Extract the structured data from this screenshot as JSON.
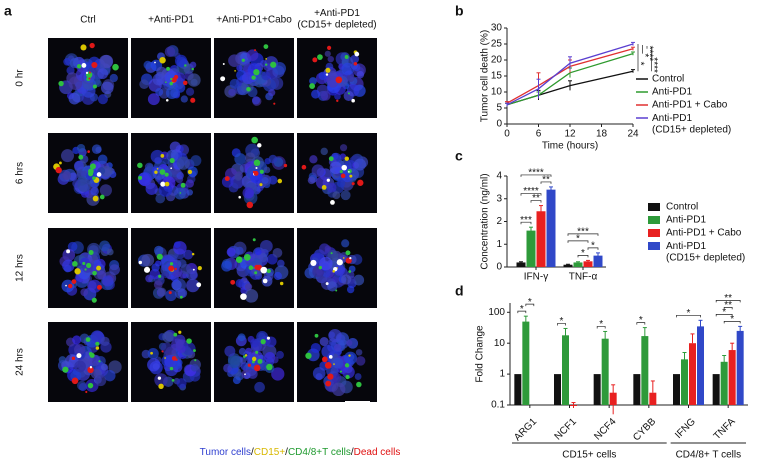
{
  "panel_a": {
    "label": "a",
    "columns": [
      "Ctrl",
      "+Anti-PD1",
      "+Anti-PD1+Cabo",
      "+Anti-PD1\n(CD15+ depleted)"
    ],
    "rows": [
      "0 hr",
      "6 hrs",
      "12 hrs",
      "24 hrs"
    ],
    "legend": [
      {
        "text": "Tumor cells",
        "color": "#2f3fd0"
      },
      {
        "text": "CD15+",
        "color": "#d8b800"
      },
      {
        "text": "CD4/8+T cells",
        "color": "#1e9a2e"
      },
      {
        "text": "Dead cells",
        "color": "#e01010"
      }
    ],
    "separator": "/"
  },
  "chart_data": [
    {
      "label": "b",
      "type": "line",
      "xlabel": "Time (hours)",
      "ylabel": "Tumor cell death (%)",
      "x": [
        0,
        6,
        12,
        24
      ],
      "xlim": [
        0,
        24
      ],
      "xticks": [
        0,
        6,
        12,
        18,
        24
      ],
      "ylim": [
        0,
        30
      ],
      "yticks": [
        0,
        5,
        10,
        15,
        20,
        25,
        30
      ],
      "series": [
        {
          "name": "Control",
          "color": "#111111",
          "values": [
            6,
            9,
            12,
            16.5
          ],
          "errors": [
            0.5,
            1.5,
            1.5,
            0.5
          ]
        },
        {
          "name": "Anti-PD1",
          "color": "#2e9a2e",
          "values": [
            6,
            9,
            16,
            22
          ],
          "errors": [
            0.5,
            1,
            1.5,
            0.5
          ]
        },
        {
          "name": "Anti-PD1 + Cabo",
          "color": "#e03030",
          "values": [
            6.5,
            12,
            18,
            23.5
          ],
          "errors": [
            0.5,
            4,
            2,
            0.5
          ]
        },
        {
          "name": "Anti-PD1\n(CD15+ depleted)",
          "color": "#5a3fd0",
          "values": [
            6,
            11,
            19,
            25
          ],
          "errors": [
            0.5,
            3,
            2,
            0.5
          ]
        }
      ],
      "significance": [
        "*",
        "*",
        "****",
        "****"
      ]
    },
    {
      "label": "c",
      "type": "bar",
      "ylabel": "Concentration (ng/ml)",
      "categories": [
        "IFN-γ",
        "TNF-α"
      ],
      "ylim": [
        0,
        4
      ],
      "yticks": [
        0,
        1,
        2,
        3,
        4
      ],
      "series": [
        {
          "name": "Control",
          "color": "#111111",
          "values": [
            0.2,
            0.1
          ],
          "errors": [
            0.03,
            0.02
          ]
        },
        {
          "name": "Anti-PD1",
          "color": "#2e9a3a",
          "values": [
            1.6,
            0.2
          ],
          "errors": [
            0.15,
            0.03
          ]
        },
        {
          "name": "Anti-PD1 + Cabo",
          "color": "#e82020",
          "values": [
            2.45,
            0.25
          ],
          "errors": [
            0.25,
            0.04
          ]
        },
        {
          "name": "Anti-PD1\n(CD15+ depleted)",
          "color": "#3048c8",
          "values": [
            3.4,
            0.5
          ],
          "errors": [
            0.12,
            0.12
          ]
        }
      ],
      "significance": [
        {
          "label": "***",
          "group": 0,
          "from": 0,
          "to": 1
        },
        {
          "label": "**",
          "group": 0,
          "from": 1,
          "to": 2
        },
        {
          "label": "****",
          "group": 0,
          "from": 0,
          "to": 2
        },
        {
          "label": "**",
          "group": 0,
          "from": 2,
          "to": 3
        },
        {
          "label": "****",
          "group": 0,
          "from": 0,
          "to": 3
        },
        {
          "label": "*",
          "group": 1,
          "from": 1,
          "to": 2
        },
        {
          "label": "*",
          "group": 1,
          "from": 2,
          "to": 3
        },
        {
          "label": "*",
          "group": 1,
          "from": 0,
          "to": 2
        },
        {
          "label": "***",
          "group": 1,
          "from": 0,
          "to": 3
        }
      ]
    },
    {
      "label": "d",
      "type": "bar",
      "log": true,
      "ylabel": "Fold Change",
      "categories": [
        "ARG1",
        "NCF1",
        "NCF4",
        "CYBB",
        "IFNG",
        "TNFA"
      ],
      "ylim": [
        0.1,
        200
      ],
      "yticks": [
        0.1,
        1,
        10,
        100
      ],
      "series": [
        {
          "color": "#111111",
          "values": [
            1,
            1,
            1,
            1,
            1,
            1
          ],
          "errors": [
            null,
            null,
            null,
            null,
            null,
            null
          ]
        },
        {
          "color": "#2e9a3a",
          "values": [
            50,
            18,
            14,
            17,
            3,
            2.5
          ],
          "errors": [
            25,
            12,
            10,
            15,
            2,
            1.5
          ]
        },
        {
          "color": "#e82020",
          "values": [
            null,
            0.1,
            0.25,
            0.25,
            10,
            6
          ],
          "errors": [
            null,
            0.02,
            0.2,
            0.35,
            10,
            4
          ]
        },
        {
          "color": "#3048c8",
          "values": [
            null,
            null,
            null,
            null,
            35,
            25
          ],
          "errors": [
            null,
            null,
            null,
            null,
            20,
            10
          ]
        }
      ],
      "significance": [
        {
          "label": "*",
          "group": 0,
          "from": 0,
          "to": 1
        },
        {
          "label": "*",
          "group": 0,
          "from": 1,
          "to": 2
        },
        {
          "label": "*",
          "group": 1,
          "from": 0,
          "to": 1
        },
        {
          "label": "*",
          "group": 2,
          "from": 0,
          "to": 1
        },
        {
          "label": "*",
          "group": 3,
          "from": 0,
          "to": 1
        },
        {
          "label": "*",
          "group": 4,
          "from": 0,
          "to": 3
        },
        {
          "label": "*",
          "group": 5,
          "from": 1,
          "to": 3
        },
        {
          "label": "*",
          "group": 5,
          "from": 0,
          "to": 2
        },
        {
          "label": "**",
          "group": 5,
          "from": 1,
          "to": 2
        },
        {
          "label": "**",
          "group": 5,
          "from": 0,
          "to": 3
        }
      ],
      "groups": [
        {
          "label": "CD15+ cells",
          "from": 0,
          "to": 3
        },
        {
          "label": "CD4/8+ T cells",
          "from": 4,
          "to": 5
        }
      ]
    }
  ]
}
